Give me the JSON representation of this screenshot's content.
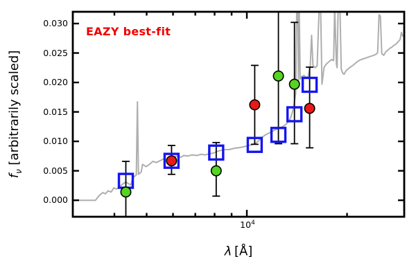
{
  "chart_data": {
    "type": "scatter",
    "title": "",
    "annotation": {
      "text": "EAZY best-fit",
      "color": "#f00000"
    },
    "xlabel": {
      "symbol": "λ",
      "unit_bracketed": "[Å]"
    },
    "ylabel": {
      "symbol": "f",
      "subscript": "ν",
      "rest": " [arbitrarily scaled]"
    },
    "xscale": "log",
    "xlim": [
      3000,
      29700
    ],
    "ylim": [
      -0.0028,
      0.032
    ],
    "grid": false,
    "legend": "none",
    "frame_color": "#000000",
    "background": "#ffffff",
    "yticks": {
      "values": [
        0.0,
        0.005,
        0.01,
        0.015,
        0.02,
        0.025,
        0.03
      ],
      "labels": [
        "0.000",
        "0.005",
        "0.010",
        "0.015",
        "0.020",
        "0.025",
        "0.030"
      ]
    },
    "xticks": {
      "major_values": [
        10000
      ],
      "major_label_base": "10",
      "major_label_exponent": "4",
      "minor_values": [
        4000,
        5000,
        6000,
        7000,
        8000,
        9000,
        20000
      ]
    },
    "series": [
      {
        "name": "model-spectrum",
        "kind": "line",
        "color": "#aeaeae",
        "points": [
          [
            3000,
            0.0
          ],
          [
            3510,
            0.0
          ],
          [
            3600,
            0.0008
          ],
          [
            3690,
            0.0013
          ],
          [
            3760,
            0.0011
          ],
          [
            3830,
            0.0016
          ],
          [
            3910,
            0.0014
          ],
          [
            3985,
            0.0021
          ],
          [
            4060,
            0.0019
          ],
          [
            4140,
            0.0023
          ],
          [
            4245,
            0.0028
          ],
          [
            4330,
            0.0031
          ],
          [
            4415,
            0.0028
          ],
          [
            4480,
            0.0026
          ],
          [
            4545,
            0.0038
          ],
          [
            4610,
            0.0041
          ],
          [
            4655,
            0.0043
          ],
          [
            4690,
            0.0167
          ],
          [
            4725,
            0.0044
          ],
          [
            4815,
            0.0048
          ],
          [
            4860,
            0.0061
          ],
          [
            4980,
            0.0057
          ],
          [
            5100,
            0.0061
          ],
          [
            5220,
            0.0066
          ],
          [
            5350,
            0.0064
          ],
          [
            5480,
            0.0067
          ],
          [
            5610,
            0.007
          ],
          [
            5745,
            0.0069
          ],
          [
            5880,
            0.0072
          ],
          [
            6025,
            0.0074
          ],
          [
            6170,
            0.0075
          ],
          [
            6320,
            0.0073
          ],
          [
            6470,
            0.0076
          ],
          [
            6630,
            0.0075
          ],
          [
            6850,
            0.0077
          ],
          [
            7080,
            0.0076
          ],
          [
            7285,
            0.0078
          ],
          [
            7495,
            0.0077
          ],
          [
            7710,
            0.0079
          ],
          [
            7930,
            0.008
          ],
          [
            8155,
            0.0083
          ],
          [
            8385,
            0.0085
          ],
          [
            8625,
            0.0086
          ],
          [
            8870,
            0.0086
          ],
          [
            9125,
            0.0088
          ],
          [
            9385,
            0.0089
          ],
          [
            9655,
            0.009
          ],
          [
            10000,
            0.0092
          ],
          [
            10290,
            0.0094
          ],
          [
            10590,
            0.0096
          ],
          [
            10850,
            0.0101
          ],
          [
            11110,
            0.0107
          ],
          [
            11375,
            0.0111
          ],
          [
            11645,
            0.0114
          ],
          [
            11925,
            0.0117
          ],
          [
            12215,
            0.012
          ],
          [
            12505,
            0.0122
          ],
          [
            12805,
            0.0125
          ],
          [
            13115,
            0.0129
          ],
          [
            13365,
            0.0134
          ],
          [
            13560,
            0.0141
          ],
          [
            13755,
            0.0153
          ],
          [
            13890,
            0.0166
          ],
          [
            14020,
            0.0181
          ],
          [
            14120,
            0.033
          ],
          [
            14225,
            0.033
          ],
          [
            14290,
            0.0201
          ],
          [
            14360,
            0.033
          ],
          [
            14465,
            0.0206
          ],
          [
            14635,
            0.021
          ],
          [
            14850,
            0.0212
          ],
          [
            15065,
            0.0208
          ],
          [
            15280,
            0.021
          ],
          [
            15500,
            0.0226
          ],
          [
            15650,
            0.028
          ],
          [
            15800,
            0.0229
          ],
          [
            16030,
            0.0225
          ],
          [
            16260,
            0.0228
          ],
          [
            16495,
            0.033
          ],
          [
            16655,
            0.033
          ],
          [
            16815,
            0.0197
          ],
          [
            17055,
            0.0225
          ],
          [
            17305,
            0.0231
          ],
          [
            17635,
            0.0235
          ],
          [
            17975,
            0.0239
          ],
          [
            18230,
            0.0237
          ],
          [
            18360,
            0.033
          ],
          [
            18580,
            0.0231
          ],
          [
            18670,
            0.0225
          ],
          [
            18805,
            0.033
          ],
          [
            19030,
            0.033
          ],
          [
            19210,
            0.0223
          ],
          [
            19395,
            0.0216
          ],
          [
            19585,
            0.0214
          ],
          [
            19865,
            0.022
          ],
          [
            20345,
            0.0225
          ],
          [
            20830,
            0.0229
          ],
          [
            21335,
            0.0234
          ],
          [
            21845,
            0.0238
          ],
          [
            22370,
            0.024
          ],
          [
            22910,
            0.0242
          ],
          [
            23460,
            0.0244
          ],
          [
            24025,
            0.0246
          ],
          [
            24480,
            0.0248
          ],
          [
            24715,
            0.0251
          ],
          [
            24950,
            0.0315
          ],
          [
            25185,
            0.0313
          ],
          [
            25425,
            0.0249
          ],
          [
            25785,
            0.0246
          ],
          [
            26150,
            0.0252
          ],
          [
            26525,
            0.0255
          ],
          [
            26900,
            0.0258
          ],
          [
            27285,
            0.026
          ],
          [
            27670,
            0.0263
          ],
          [
            28065,
            0.0265
          ],
          [
            28465,
            0.0269
          ],
          [
            28870,
            0.0273
          ],
          [
            29140,
            0.0285
          ],
          [
            29416,
            0.0278
          ]
        ]
      },
      {
        "name": "template-photometry",
        "kind": "scatter",
        "marker": "open-square",
        "color": "#1515f0",
        "points": [
          [
            4330,
            0.0033
          ],
          [
            5940,
            0.0067
          ],
          [
            8090,
            0.0081
          ],
          [
            10560,
            0.0094
          ],
          [
            12440,
            0.0111
          ],
          [
            13900,
            0.0146
          ],
          [
            15440,
            0.0196
          ]
        ]
      },
      {
        "name": "observed-photometry",
        "kind": "scatter",
        "marker": "circle",
        "edge_color": "#000000",
        "points": [
          {
            "lambda": 4330,
            "flux": 0.0014,
            "color": "#55d420",
            "err_lo": -0.0045,
            "err_hi": 0.0066
          },
          {
            "lambda": 5940,
            "flux": 0.0067,
            "color": "#ea1917",
            "err_lo": 0.0044,
            "err_hi": 0.0093
          },
          {
            "lambda": 8090,
            "flux": 0.005,
            "color": "#55d420",
            "err_lo": 0.0007,
            "err_hi": 0.0098
          },
          {
            "lambda": 10560,
            "flux": 0.0162,
            "color": "#ea1917",
            "err_lo": 0.0095,
            "err_hi": 0.0229
          },
          {
            "lambda": 12440,
            "flux": 0.0211,
            "color": "#55d420",
            "err_lo": 0.0096,
            "err_hi": 0.0335
          },
          {
            "lambda": 13900,
            "flux": 0.0197,
            "color": "#55d420",
            "err_lo": 0.0096,
            "err_hi": 0.0302
          },
          {
            "lambda": 15440,
            "flux": 0.0156,
            "color": "#ea1917",
            "err_lo": 0.0089,
            "err_hi": 0.0226
          }
        ]
      }
    ]
  }
}
